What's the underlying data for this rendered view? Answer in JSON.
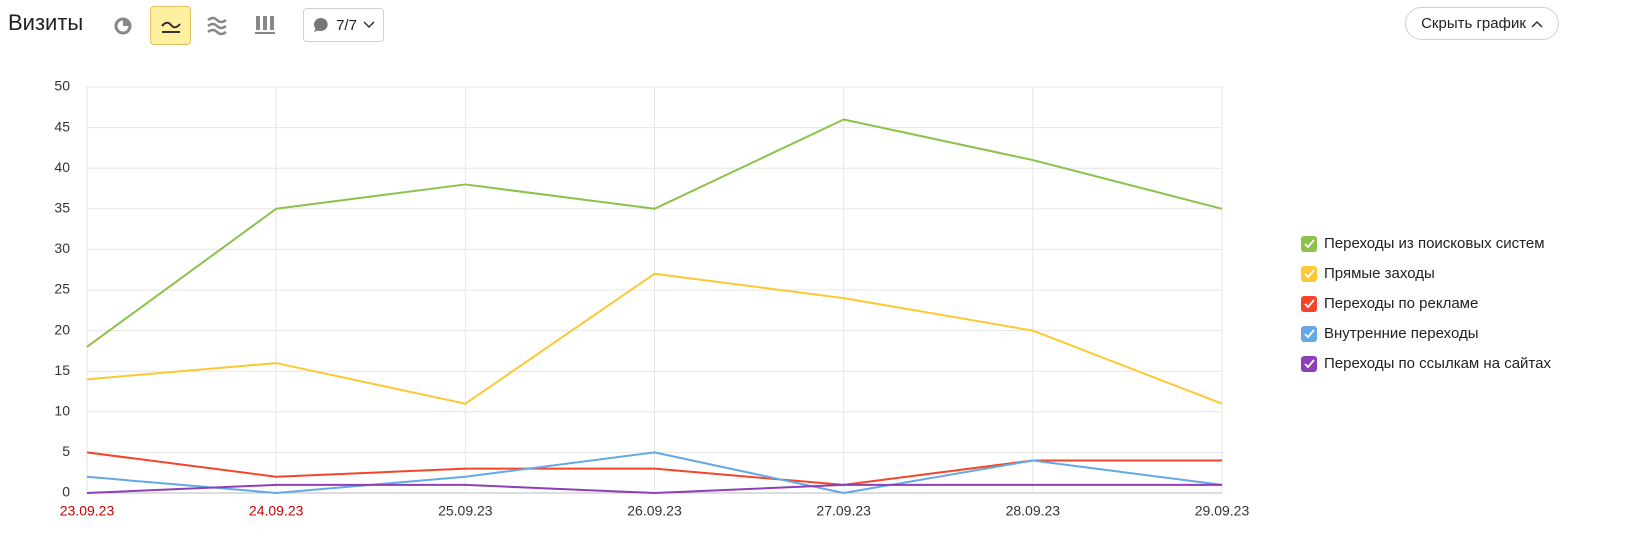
{
  "header": {
    "title": "Визиты",
    "comments_button": "7/7",
    "hide_button": "Скрыть график"
  },
  "chart_data": {
    "type": "line",
    "categories": [
      "23.09.23",
      "24.09.23",
      "25.09.23",
      "26.09.23",
      "27.09.23",
      "28.09.23",
      "29.09.23"
    ],
    "category_colors": [
      "#cc0000",
      "#cc0000",
      "#333333",
      "#333333",
      "#333333",
      "#333333",
      "#333333"
    ],
    "series": [
      {
        "name": "Переходы из поисковых систем",
        "color": "#8bc34a",
        "values": [
          18,
          35,
          38,
          35,
          46,
          41,
          35
        ]
      },
      {
        "name": "Прямые заходы",
        "color": "#fcc934",
        "values": [
          14,
          16,
          11,
          27,
          24,
          20,
          11
        ]
      },
      {
        "name": "Переходы по рекламе",
        "color": "#f4452a",
        "values": [
          5,
          2,
          3,
          3,
          1,
          4,
          4
        ]
      },
      {
        "name": "Внутренние переходы",
        "color": "#64a8e6",
        "values": [
          2,
          0,
          2,
          5,
          0,
          4,
          1
        ]
      },
      {
        "name": "Переходы по ссылкам на сайтах",
        "color": "#8e3fb5",
        "values": [
          0,
          1,
          1,
          0,
          1,
          1,
          1
        ]
      }
    ],
    "ylim": [
      0,
      50
    ],
    "yticks": [
      0,
      5,
      10,
      15,
      20,
      25,
      30,
      35,
      40,
      45,
      50
    ],
    "grid": true,
    "legend": "right"
  }
}
